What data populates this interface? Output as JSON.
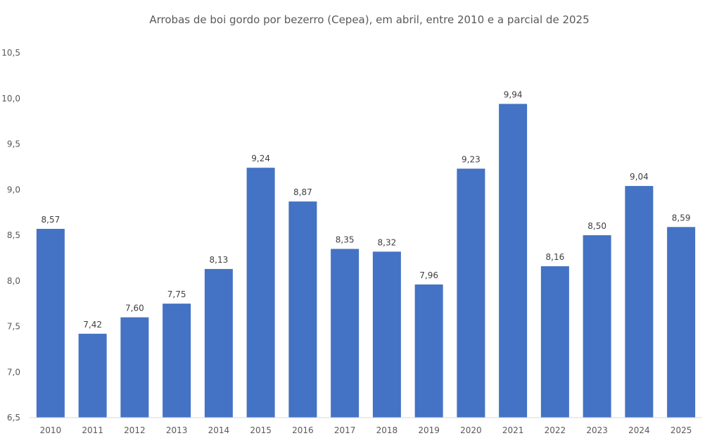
{
  "chart_data": {
    "type": "bar",
    "title": "Arrobas de boi gordo por bezerro (Cepea), em abril, entre 2010 e a parcial de 2025",
    "xlabel": "",
    "ylabel": "",
    "categories": [
      "2010",
      "2011",
      "2012",
      "2013",
      "2014",
      "2015",
      "2016",
      "2017",
      "2018",
      "2019",
      "2020",
      "2021",
      "2022",
      "2023",
      "2024",
      "2025"
    ],
    "values": [
      8.57,
      7.42,
      7.6,
      7.75,
      8.13,
      9.24,
      8.87,
      8.35,
      8.32,
      7.96,
      9.23,
      9.94,
      8.16,
      8.5,
      9.04,
      8.59
    ],
    "value_labels": [
      "8,57",
      "7,42",
      "7,60",
      "7,75",
      "8,13",
      "9,24",
      "8,87",
      "8,35",
      "8,32",
      "7,96",
      "9,23",
      "9,94",
      "8,16",
      "8,50",
      "9,04",
      "8,59"
    ],
    "ylim": [
      6.5,
      10.5
    ],
    "yticks": [
      6.5,
      7.0,
      7.5,
      8.0,
      8.5,
      9.0,
      9.5,
      10.0,
      10.5
    ],
    "ytick_labels": [
      "6,5",
      "7,0",
      "7,5",
      "8,0",
      "8,5",
      "9,0",
      "9,5",
      "10,0",
      "10,5"
    ],
    "grid": false,
    "legend": "none",
    "bar_color": "#4472C4"
  }
}
